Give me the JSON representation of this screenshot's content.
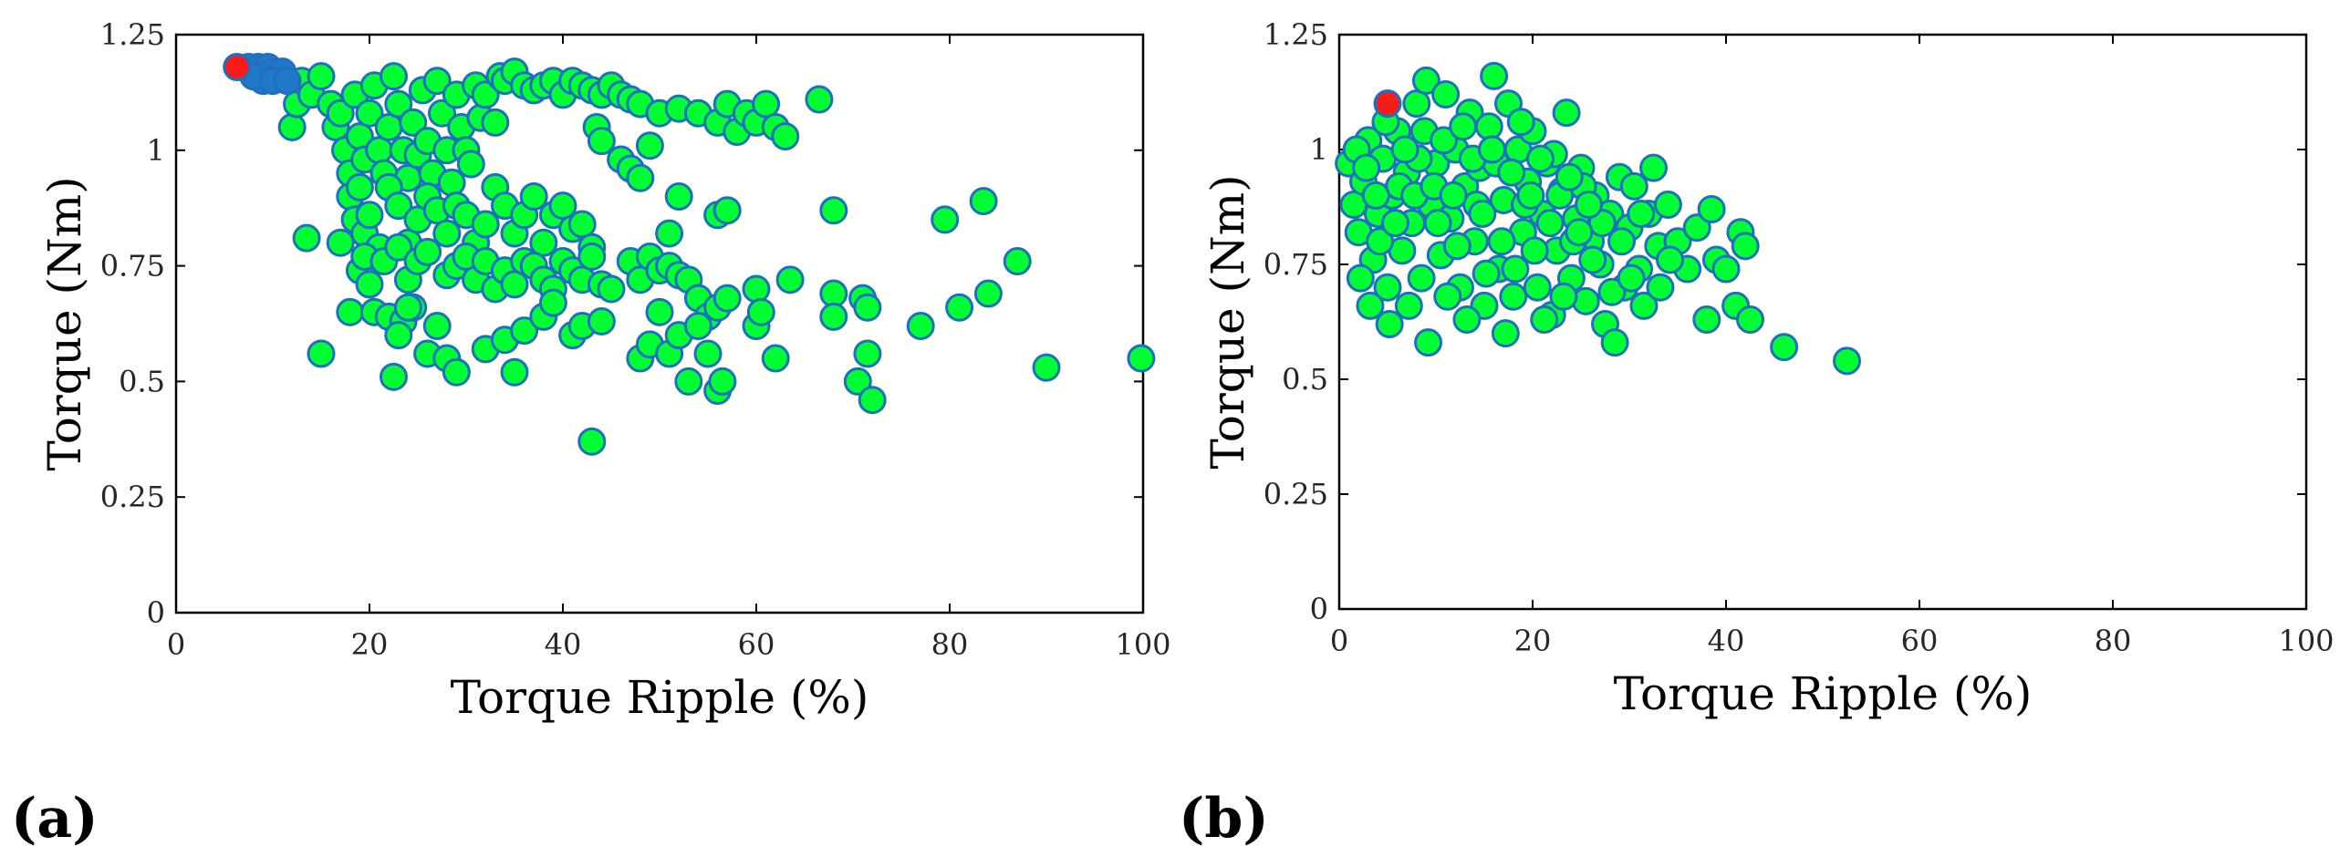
{
  "figure": {
    "panel_labels": [
      "(a)",
      "(b)"
    ]
  },
  "colors": {
    "point_fill": "#00ff33",
    "point_edge": "#1f6fbf",
    "highlight_fill": "#ff1a1a",
    "cluster_fill": "#1f78c8",
    "axis": "#000000"
  },
  "chart_data": [
    {
      "type": "scatter",
      "panel": "(a)",
      "title": "",
      "xlabel": "Torque Ripple (%)",
      "ylabel": "Torque (Nm)",
      "xlim": [
        0,
        100
      ],
      "ylim": [
        0,
        1.25
      ],
      "xticks": [
        "0",
        "20",
        "40",
        "60",
        "80",
        "100"
      ],
      "yticks": [
        "0",
        "0.25",
        "0.5",
        "0.75",
        "1",
        "1.25"
      ],
      "highlight": {
        "x": 6.3,
        "y": 1.18
      },
      "cluster": [
        [
          7.5,
          1.18
        ],
        [
          8,
          1.17
        ],
        [
          8.5,
          1.18
        ],
        [
          9,
          1.16
        ],
        [
          9.5,
          1.18
        ],
        [
          10,
          1.17
        ],
        [
          10.5,
          1.16
        ],
        [
          11,
          1.17
        ],
        [
          9,
          1.15
        ],
        [
          8,
          1.16
        ],
        [
          10,
          1.15
        ],
        [
          11.5,
          1.15
        ]
      ],
      "points": [
        [
          12,
          1.05
        ],
        [
          12.5,
          1.1
        ],
        [
          13,
          1.15
        ],
        [
          14,
          1.12
        ],
        [
          15,
          1.16
        ],
        [
          16,
          1.1
        ],
        [
          16.5,
          1.05
        ],
        [
          17,
          1.08
        ],
        [
          17.5,
          1.0
        ],
        [
          18,
          0.95
        ],
        [
          18.5,
          1.12
        ],
        [
          19,
          1.03
        ],
        [
          19.5,
          0.98
        ],
        [
          20,
          1.08
        ],
        [
          20.5,
          1.14
        ],
        [
          21,
          1.0
        ],
        [
          21.5,
          0.95
        ],
        [
          22,
          1.05
        ],
        [
          22.5,
          1.16
        ],
        [
          23,
          1.1
        ],
        [
          23.5,
          1.0
        ],
        [
          24,
          0.94
        ],
        [
          24.5,
          1.06
        ],
        [
          25,
          0.99
        ],
        [
          25.5,
          1.13
        ],
        [
          26,
          1.02
        ],
        [
          26.5,
          0.95
        ],
        [
          27,
          1.15
        ],
        [
          27.5,
          1.08
        ],
        [
          28,
          1.0
        ],
        [
          28.5,
          0.93
        ],
        [
          29,
          1.12
        ],
        [
          29.5,
          1.05
        ],
        [
          30,
          1.0
        ],
        [
          30.5,
          0.97
        ],
        [
          31,
          1.14
        ],
        [
          31.5,
          1.07
        ],
        [
          32,
          1.12
        ],
        [
          33,
          1.06
        ],
        [
          33.5,
          1.16
        ],
        [
          34,
          1.15
        ],
        [
          35,
          1.17
        ],
        [
          36,
          1.14
        ],
        [
          37,
          1.13
        ],
        [
          38,
          1.14
        ],
        [
          39,
          1.15
        ],
        [
          40,
          1.12
        ],
        [
          41,
          1.15
        ],
        [
          42,
          1.14
        ],
        [
          43,
          1.13
        ],
        [
          44,
          1.12
        ],
        [
          45,
          1.14
        ],
        [
          46,
          1.12
        ],
        [
          47,
          1.11
        ],
        [
          48,
          1.1
        ],
        [
          50,
          1.08
        ],
        [
          52,
          1.09
        ],
        [
          54,
          1.08
        ],
        [
          56,
          1.06
        ],
        [
          57,
          1.1
        ],
        [
          58,
          1.04
        ],
        [
          59,
          1.08
        ],
        [
          60,
          1.06
        ],
        [
          61,
          1.1
        ],
        [
          62,
          1.05
        ],
        [
          63,
          1.03
        ],
        [
          66.5,
          1.11
        ],
        [
          43.5,
          1.05
        ],
        [
          44,
          1.02
        ],
        [
          46,
          0.98
        ],
        [
          47,
          0.96
        ],
        [
          48,
          0.94
        ],
        [
          49,
          1.01
        ],
        [
          18,
          0.9
        ],
        [
          18.5,
          0.85
        ],
        [
          19,
          0.92
        ],
        [
          19.5,
          0.82
        ],
        [
          20,
          0.86
        ],
        [
          21,
          0.79
        ],
        [
          22,
          0.92
        ],
        [
          23,
          0.88
        ],
        [
          24,
          0.8
        ],
        [
          25,
          0.85
        ],
        [
          26,
          0.9
        ],
        [
          27,
          0.87
        ],
        [
          28,
          0.82
        ],
        [
          29,
          0.88
        ],
        [
          30,
          0.86
        ],
        [
          31,
          0.8
        ],
        [
          32,
          0.84
        ],
        [
          33,
          0.92
        ],
        [
          34,
          0.88
        ],
        [
          35,
          0.82
        ],
        [
          36,
          0.86
        ],
        [
          37,
          0.9
        ],
        [
          38,
          0.8
        ],
        [
          39,
          0.86
        ],
        [
          40,
          0.88
        ],
        [
          41,
          0.83
        ],
        [
          42,
          0.84
        ],
        [
          43,
          0.79
        ],
        [
          51,
          0.82
        ],
        [
          52,
          0.9
        ],
        [
          56,
          0.86
        ],
        [
          57,
          0.87
        ],
        [
          68,
          0.87
        ],
        [
          79.5,
          0.85
        ],
        [
          83.5,
          0.89
        ],
        [
          13.5,
          0.81
        ],
        [
          17,
          0.8
        ],
        [
          18,
          0.65
        ],
        [
          19,
          0.74
        ],
        [
          19.5,
          0.77
        ],
        [
          20,
          0.71
        ],
        [
          20.5,
          0.65
        ],
        [
          21.5,
          0.76
        ],
        [
          22,
          0.64
        ],
        [
          23,
          0.79
        ],
        [
          23.5,
          0.63
        ],
        [
          24,
          0.72
        ],
        [
          24.5,
          0.66
        ],
        [
          25,
          0.76
        ],
        [
          26,
          0.78
        ],
        [
          27,
          0.62
        ],
        [
          28,
          0.73
        ],
        [
          29,
          0.75
        ],
        [
          30,
          0.77
        ],
        [
          31,
          0.72
        ],
        [
          32,
          0.76
        ],
        [
          33,
          0.7
        ],
        [
          34,
          0.74
        ],
        [
          35,
          0.71
        ],
        [
          36,
          0.76
        ],
        [
          37,
          0.75
        ],
        [
          38,
          0.72
        ],
        [
          39,
          0.7
        ],
        [
          40,
          0.76
        ],
        [
          41,
          0.74
        ],
        [
          42,
          0.72
        ],
        [
          43,
          0.77
        ],
        [
          44,
          0.71
        ],
        [
          45,
          0.7
        ],
        [
          47,
          0.76
        ],
        [
          48,
          0.72
        ],
        [
          49,
          0.77
        ],
        [
          50,
          0.74
        ],
        [
          51,
          0.75
        ],
        [
          52,
          0.73
        ],
        [
          53,
          0.72
        ],
        [
          54,
          0.68
        ],
        [
          55,
          0.64
        ],
        [
          56,
          0.66
        ],
        [
          57,
          0.68
        ],
        [
          60,
          0.7
        ],
        [
          63.5,
          0.72
        ],
        [
          68,
          0.69
        ],
        [
          71,
          0.68
        ],
        [
          71.5,
          0.66
        ],
        [
          87,
          0.76
        ],
        [
          15,
          0.56
        ],
        [
          22.5,
          0.51
        ],
        [
          23,
          0.6
        ],
        [
          24,
          0.66
        ],
        [
          26,
          0.56
        ],
        [
          28,
          0.55
        ],
        [
          29,
          0.52
        ],
        [
          32,
          0.57
        ],
        [
          34,
          0.59
        ],
        [
          35,
          0.52
        ],
        [
          36,
          0.61
        ],
        [
          38,
          0.64
        ],
        [
          39,
          0.67
        ],
        [
          41,
          0.6
        ],
        [
          42,
          0.62
        ],
        [
          44,
          0.63
        ],
        [
          48,
          0.55
        ],
        [
          49,
          0.58
        ],
        [
          50,
          0.65
        ],
        [
          51,
          0.56
        ],
        [
          52,
          0.6
        ],
        [
          53,
          0.5
        ],
        [
          54,
          0.62
        ],
        [
          55,
          0.56
        ],
        [
          56,
          0.48
        ],
        [
          56.5,
          0.5
        ],
        [
          60,
          0.62
        ],
        [
          60.5,
          0.65
        ],
        [
          62,
          0.55
        ],
        [
          68,
          0.64
        ],
        [
          70.5,
          0.5
        ],
        [
          71.5,
          0.56
        ],
        [
          72,
          0.46
        ],
        [
          77,
          0.62
        ],
        [
          81,
          0.66
        ],
        [
          84,
          0.69
        ],
        [
          90,
          0.53
        ],
        [
          99.8,
          0.55
        ],
        [
          43,
          0.37
        ]
      ]
    },
    {
      "type": "scatter",
      "panel": "(b)",
      "title": "",
      "xlabel": "Torque Ripple (%)",
      "ylabel": "Torque (Nm)",
      "xlim": [
        0,
        100
      ],
      "ylim": [
        0,
        1.25
      ],
      "xticks": [
        "0",
        "20",
        "40",
        "60",
        "80",
        "100"
      ],
      "yticks": [
        "0",
        "0.25",
        "0.5",
        "0.75",
        "1",
        "1.25"
      ],
      "highlight": {
        "x": 5.0,
        "y": 1.1
      },
      "points": [
        [
          1,
          0.97
        ],
        [
          1.5,
          0.88
        ],
        [
          2,
          0.82
        ],
        [
          2.5,
          0.93
        ],
        [
          3,
          1.02
        ],
        [
          3.5,
          0.76
        ],
        [
          4,
          0.86
        ],
        [
          4.5,
          0.98
        ],
        [
          5,
          0.7
        ],
        [
          5.5,
          0.9
        ],
        [
          6,
          1.04
        ],
        [
          6.5,
          0.78
        ],
        [
          7,
          0.95
        ],
        [
          7.5,
          0.84
        ],
        [
          8,
          1.1
        ],
        [
          8.5,
          0.72
        ],
        [
          9,
          1.15
        ],
        [
          9.5,
          0.88
        ],
        [
          10,
          0.97
        ],
        [
          10.5,
          0.77
        ],
        [
          11,
          1.12
        ],
        [
          11.5,
          0.85
        ],
        [
          12,
          1.0
        ],
        [
          12.5,
          0.7
        ],
        [
          13,
          0.92
        ],
        [
          13.5,
          1.08
        ],
        [
          14,
          0.8
        ],
        [
          14.5,
          0.96
        ],
        [
          15,
          0.66
        ],
        [
          15.5,
          1.05
        ],
        [
          16,
          1.16
        ],
        [
          16.5,
          0.74
        ],
        [
          17,
          0.89
        ],
        [
          17.5,
          1.1
        ],
        [
          18,
          0.68
        ],
        [
          18.5,
          1.0
        ],
        [
          19,
          0.82
        ],
        [
          19.5,
          0.93
        ],
        [
          20,
          1.04
        ],
        [
          20.5,
          0.7
        ],
        [
          21,
          0.86
        ],
        [
          21.5,
          0.97
        ],
        [
          22,
          0.64
        ],
        [
          22.5,
          0.78
        ],
        [
          23,
          0.91
        ],
        [
          23.5,
          1.08
        ],
        [
          24,
          0.72
        ],
        [
          24.5,
          0.85
        ],
        [
          25,
          0.96
        ],
        [
          25.5,
          0.67
        ],
        [
          26,
          0.8
        ],
        [
          26.5,
          0.9
        ],
        [
          27,
          0.75
        ],
        [
          27.5,
          0.62
        ],
        [
          28,
          0.86
        ],
        [
          28.5,
          0.58
        ],
        [
          29,
          0.94
        ],
        [
          29.5,
          0.7
        ],
        [
          30,
          0.83
        ],
        [
          30.5,
          0.92
        ],
        [
          31,
          0.74
        ],
        [
          31.5,
          0.66
        ],
        [
          32,
          0.86
        ],
        [
          32.5,
          0.96
        ],
        [
          33,
          0.79
        ],
        [
          34,
          0.88
        ],
        [
          35,
          0.8
        ],
        [
          36,
          0.74
        ],
        [
          37,
          0.83
        ],
        [
          38,
          0.63
        ],
        [
          38.5,
          0.87
        ],
        [
          39,
          0.76
        ],
        [
          40,
          0.74
        ],
        [
          41,
          0.66
        ],
        [
          41.5,
          0.82
        ],
        [
          42,
          0.79
        ],
        [
          42.5,
          0.63
        ],
        [
          46,
          0.57
        ],
        [
          52.5,
          0.54
        ],
        [
          2.2,
          0.72
        ],
        [
          3.2,
          0.66
        ],
        [
          4.2,
          0.8
        ],
        [
          5.2,
          0.62
        ],
        [
          6.2,
          0.92
        ],
        [
          7.2,
          0.66
        ],
        [
          8.2,
          0.98
        ],
        [
          9.2,
          0.58
        ],
        [
          10.2,
          0.84
        ],
        [
          11.2,
          0.68
        ],
        [
          12.2,
          0.79
        ],
        [
          13.2,
          0.63
        ],
        [
          14.2,
          0.88
        ],
        [
          15.2,
          0.73
        ],
        [
          16.2,
          0.97
        ],
        [
          17.2,
          0.6
        ],
        [
          18.2,
          0.74
        ],
        [
          19.2,
          0.88
        ],
        [
          20.2,
          0.78
        ],
        [
          21.2,
          0.63
        ],
        [
          22.2,
          0.99
        ],
        [
          23.2,
          0.68
        ],
        [
          24.2,
          0.8
        ],
        [
          25.2,
          0.92
        ],
        [
          26.2,
          0.76
        ],
        [
          27.2,
          0.84
        ],
        [
          28.2,
          0.69
        ],
        [
          29.2,
          0.8
        ],
        [
          30.2,
          0.72
        ],
        [
          31.2,
          0.86
        ],
        [
          33.2,
          0.7
        ],
        [
          34.2,
          0.76
        ],
        [
          1.8,
          1.0
        ],
        [
          2.8,
          0.96
        ],
        [
          3.8,
          0.9
        ],
        [
          4.8,
          1.06
        ],
        [
          5.8,
          0.84
        ],
        [
          6.8,
          1.0
        ],
        [
          7.8,
          0.9
        ],
        [
          8.8,
          1.04
        ],
        [
          9.8,
          0.92
        ],
        [
          10.8,
          1.02
        ],
        [
          11.8,
          0.9
        ],
        [
          12.8,
          1.05
        ],
        [
          13.8,
          0.98
        ],
        [
          14.8,
          0.86
        ],
        [
          15.8,
          1.0
        ],
        [
          16.8,
          0.8
        ],
        [
          17.8,
          0.95
        ],
        [
          18.8,
          1.06
        ],
        [
          19.8,
          0.9
        ],
        [
          20.8,
          0.98
        ],
        [
          21.8,
          0.84
        ],
        [
          22.8,
          0.9
        ],
        [
          23.8,
          0.94
        ],
        [
          24.8,
          0.82
        ],
        [
          25.8,
          0.88
        ]
      ]
    }
  ]
}
